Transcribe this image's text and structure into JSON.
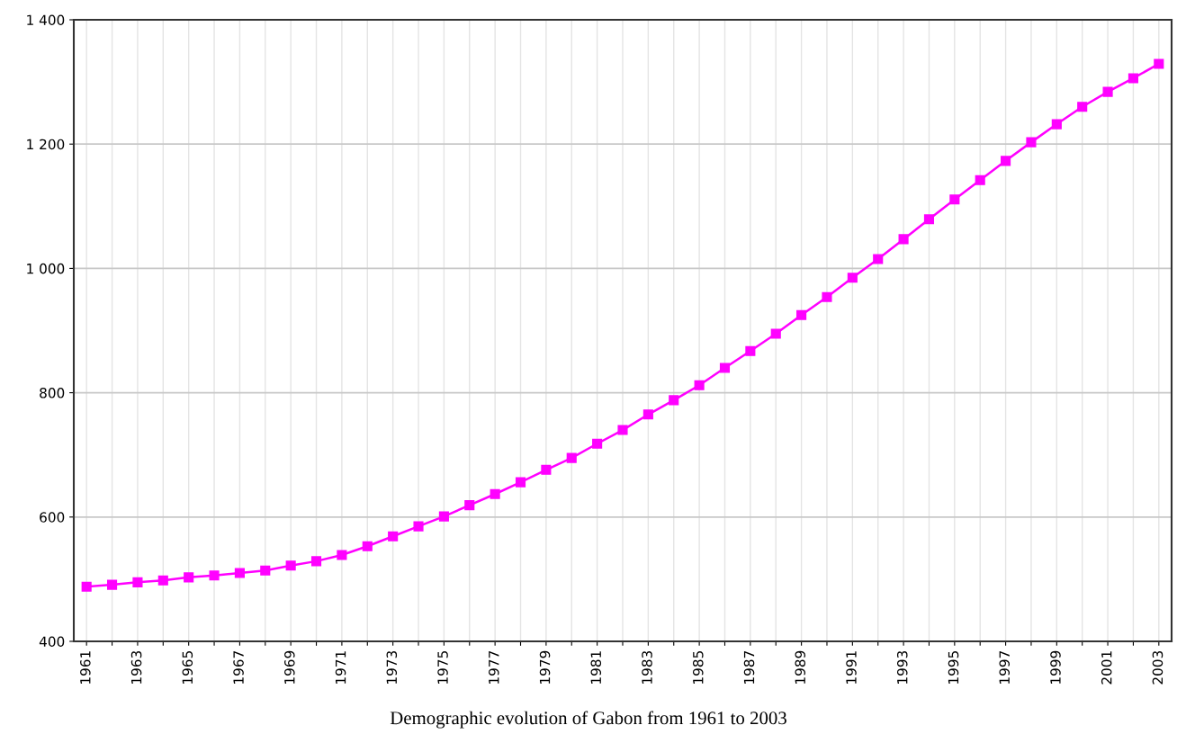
{
  "chart_data": {
    "type": "line",
    "title": "Demographic evolution of Gabon from 1961 to 2003",
    "x": [
      1961,
      1962,
      1963,
      1964,
      1965,
      1966,
      1967,
      1968,
      1969,
      1970,
      1971,
      1972,
      1973,
      1974,
      1975,
      1976,
      1977,
      1978,
      1979,
      1980,
      1981,
      1982,
      1983,
      1984,
      1985,
      1986,
      1987,
      1988,
      1989,
      1990,
      1991,
      1992,
      1993,
      1994,
      1995,
      1996,
      1997,
      1998,
      1999,
      2000,
      2001,
      2002,
      2003
    ],
    "series": [
      {
        "color": "#ff00ff",
        "values": [
          488,
          491,
          495,
          498,
          503,
          506,
          510,
          514,
          522,
          529,
          539,
          553,
          569,
          585,
          601,
          619,
          637,
          656,
          676,
          695,
          718,
          740,
          765,
          788,
          812,
          840,
          867,
          895,
          925,
          954,
          985,
          1015,
          1047,
          1079,
          1111,
          1142,
          1173,
          1203,
          1232,
          1260,
          1284,
          1306,
          1329
        ]
      }
    ],
    "xlim": [
      1960.5,
      2003.5
    ],
    "xticks": [
      1961,
      {
        "value": 1962,
        "label": null
      },
      1963,
      {
        "value": 1964,
        "label": null
      },
      1965,
      {
        "value": 1966,
        "label": null
      },
      1967,
      {
        "value": 1968,
        "label": null
      },
      1969,
      {
        "value": 1970,
        "label": null
      },
      1971,
      {
        "value": 1972,
        "label": null
      },
      1973,
      {
        "value": 1974,
        "label": null
      },
      1975,
      {
        "value": 1976,
        "label": null
      },
      1977,
      {
        "value": 1978,
        "label": null
      },
      1979,
      {
        "value": 1980,
        "label": null
      },
      1981,
      {
        "value": 1982,
        "label": null
      },
      1983,
      {
        "value": 1984,
        "label": null
      },
      1985,
      {
        "value": 1986,
        "label": null
      },
      1987,
      {
        "value": 1988,
        "label": null
      },
      1989,
      {
        "value": 1990,
        "label": null
      },
      1991,
      {
        "value": 1992,
        "label": null
      },
      1993,
      {
        "value": 1994,
        "label": null
      },
      1995,
      {
        "value": 1996,
        "label": null
      },
      1997,
      {
        "value": 1998,
        "label": null
      },
      1999,
      {
        "value": 2000,
        "label": null
      },
      2001,
      {
        "value": 2002,
        "label": null
      },
      2003
    ],
    "ylim": [
      400,
      1400
    ],
    "yticks": [
      400,
      600,
      800,
      {
        "value": 1000,
        "label": "1 000"
      },
      {
        "value": 1200,
        "label": "1 200"
      },
      {
        "value": 1400,
        "label": "1 400"
      }
    ],
    "grid": true,
    "marker": "square",
    "line_style": "solid",
    "legend": false
  }
}
